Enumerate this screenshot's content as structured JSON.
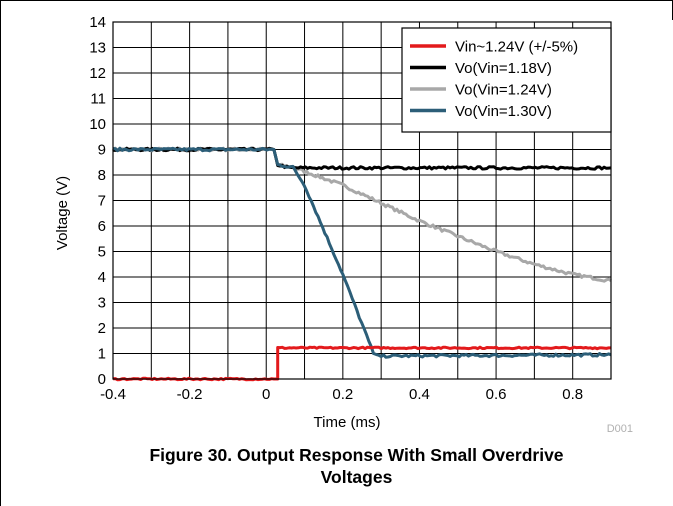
{
  "figure": {
    "caption_line1": "Figure 30. Output Response With Small Overdrive",
    "caption_line2": "Voltages",
    "code": "D001"
  },
  "chart_data": {
    "type": "line",
    "xlabel": "Time (ms)",
    "ylabel": "Voltage (V)",
    "xlim": [
      -0.4,
      0.9
    ],
    "ylim": [
      0,
      14
    ],
    "xticks": [
      -0.4,
      -0.2,
      0,
      0.2,
      0.4,
      0.6,
      0.8
    ],
    "xtick_labels": [
      "-0.4",
      "-0.2",
      "0",
      "0.2",
      "0.4",
      "0.6",
      "0.8"
    ],
    "yticks": [
      0,
      1,
      2,
      3,
      4,
      5,
      6,
      7,
      8,
      9,
      10,
      11,
      12,
      13,
      14
    ],
    "ytick_labels": [
      "0",
      "1",
      "2",
      "3",
      "4",
      "5",
      "6",
      "7",
      "8",
      "9",
      "10",
      "11",
      "12",
      "13",
      "14"
    ],
    "grid": true,
    "legend_position": "top-right",
    "series": [
      {
        "name": "Vin~1.24V (+/-5%)",
        "color": "#e31a1c",
        "x": [
          -0.4,
          0.02,
          0.02,
          0.03,
          0.03,
          0.9
        ],
        "y": [
          0,
          0,
          0,
          0,
          1.22,
          1.22
        ],
        "noise": 0.03
      },
      {
        "name": "Vo(Vin=1.18V)",
        "color": "#000000",
        "x": [
          -0.4,
          0.02,
          0.03,
          0.06,
          0.9
        ],
        "y": [
          9.0,
          9.0,
          8.4,
          8.28,
          8.28
        ],
        "noise": 0.05
      },
      {
        "name": "Vo(Vin=1.24V)",
        "color": "#a8a8a8",
        "x": [
          -0.4,
          0.02,
          0.03,
          0.07,
          0.2,
          0.3,
          0.4,
          0.5,
          0.6,
          0.7,
          0.8,
          0.9
        ],
        "y": [
          9.0,
          9.0,
          8.4,
          8.3,
          7.6,
          6.9,
          6.2,
          5.6,
          5.0,
          4.5,
          4.1,
          3.85
        ],
        "noise": 0.06
      },
      {
        "name": "Vo(Vin=1.30V)",
        "color": "#2c5e78",
        "x": [
          -0.4,
          0.02,
          0.03,
          0.07,
          0.1,
          0.2,
          0.28,
          0.3,
          0.9
        ],
        "y": [
          9.0,
          9.0,
          8.4,
          8.3,
          7.6,
          4.1,
          1.0,
          0.9,
          0.95
        ],
        "noise": 0.05
      }
    ]
  }
}
